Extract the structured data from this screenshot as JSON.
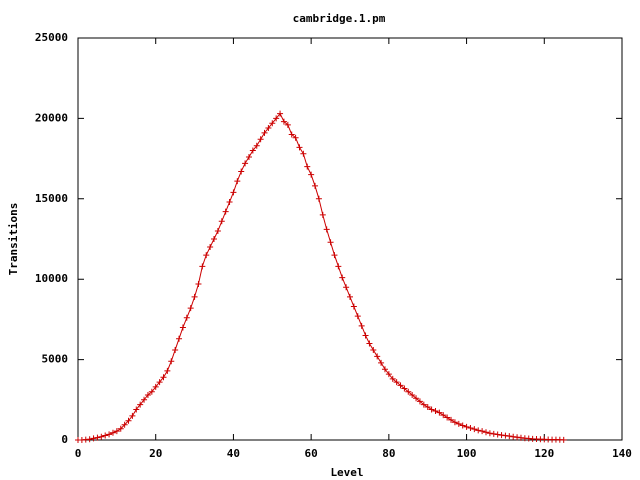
{
  "chart_data": {
    "type": "line",
    "title": "cambridge.1.pm",
    "x_label": "Level",
    "y_label": "Transitions",
    "x": [
      0,
      1,
      2,
      3,
      4,
      5,
      6,
      7,
      8,
      9,
      10,
      11,
      12,
      13,
      14,
      15,
      16,
      17,
      18,
      19,
      20,
      21,
      22,
      23,
      24,
      25,
      26,
      27,
      28,
      29,
      30,
      31,
      32,
      33,
      34,
      35,
      36,
      37,
      38,
      39,
      40,
      41,
      42,
      43,
      44,
      45,
      46,
      47,
      48,
      49,
      50,
      51,
      52,
      53,
      54,
      55,
      56,
      57,
      58,
      59,
      60,
      61,
      62,
      63,
      64,
      65,
      66,
      67,
      68,
      69,
      70,
      71,
      72,
      73,
      74,
      75,
      76,
      77,
      78,
      79,
      80,
      81,
      82,
      83,
      84,
      85,
      86,
      87,
      88,
      89,
      90,
      91,
      92,
      93,
      94,
      95,
      96,
      97,
      98,
      99,
      100,
      101,
      102,
      103,
      104,
      105,
      106,
      107,
      108,
      109,
      110,
      111,
      112,
      113,
      114,
      115,
      116,
      117,
      118,
      119,
      120,
      121,
      122,
      123,
      124,
      125
    ],
    "series": [
      {
        "color": "#cc0000",
        "values": [
          0,
          0,
          20,
          50,
          100,
          150,
          200,
          280,
          350,
          450,
          550,
          700,
          950,
          1200,
          1500,
          1900,
          2200,
          2500,
          2800,
          3000,
          3300,
          3600,
          3900,
          4300,
          4900,
          5600,
          6300,
          7000,
          7600,
          8200,
          8900,
          9700,
          10800,
          11500,
          12000,
          12500,
          13000,
          13600,
          14200,
          14800,
          15400,
          16100,
          16700,
          17200,
          17600,
          18000,
          18300,
          18700,
          19100,
          19400,
          19700,
          20000,
          20300,
          19800,
          19600,
          19000,
          18800,
          18200,
          17800,
          17000,
          16500,
          15800,
          15000,
          14000,
          13100,
          12300,
          11500,
          10800,
          10100,
          9500,
          8900,
          8300,
          7700,
          7100,
          6500,
          6000,
          5600,
          5200,
          4800,
          4400,
          4100,
          3800,
          3600,
          3400,
          3200,
          3000,
          2800,
          2600,
          2400,
          2200,
          2050,
          1900,
          1800,
          1700,
          1550,
          1400,
          1250,
          1100,
          1000,
          900,
          820,
          750,
          680,
          600,
          550,
          480,
          420,
          380,
          340,
          300,
          270,
          240,
          200,
          170,
          140,
          110,
          90,
          70,
          60,
          50,
          40,
          30,
          25,
          20,
          15,
          10
        ]
      }
    ],
    "xlim": [
      0,
      140
    ],
    "xticks": [
      0,
      20,
      40,
      60,
      80,
      100,
      120,
      140
    ],
    "ylim": [
      0,
      25000
    ],
    "yticks": [
      0,
      5000,
      10000,
      15000,
      20000,
      25000
    ],
    "grid": false
  }
}
